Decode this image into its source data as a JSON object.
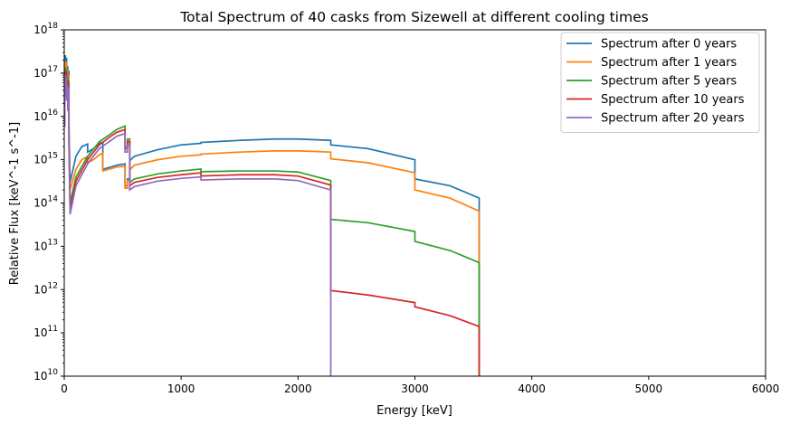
{
  "chart_data": {
    "type": "line",
    "title": "Total Spectrum of 40 casks from Sizewell at different cooling times",
    "xlabel": "Energy [keV]",
    "ylabel": "Relative Flux [keV^-1 s^-1]",
    "xlim": [
      0,
      6000
    ],
    "ylim": [
      10000000000.0,
      1e+18
    ],
    "yscale": "log",
    "grid": false,
    "legend_position": "top-right",
    "x_ticks": [
      0,
      1000,
      2000,
      3000,
      4000,
      5000,
      6000
    ],
    "y_tick_exponents": [
      10,
      11,
      12,
      13,
      14,
      15,
      16,
      17,
      18
    ],
    "series": [
      {
        "name": "Spectrum after 0 years",
        "color": "#1f77b4",
        "x": [
          0,
          5,
          5,
          10,
          10,
          15,
          15,
          20,
          20,
          25,
          25,
          30,
          30,
          35,
          35,
          40,
          40,
          50,
          100,
          150,
          200,
          200,
          250,
          300,
          330,
          330,
          400,
          450,
          520,
          520,
          540,
          540,
          560,
          560,
          600,
          800,
          1000,
          1170,
          1170,
          1500,
          1800,
          2000,
          2280,
          2280,
          2600,
          3000,
          3000,
          3300,
          3550,
          3550
        ],
        "y": [
          2e+16,
          2e+16,
          2.5e+17,
          2.5e+17,
          8e+16,
          8e+16,
          2.2e+17,
          2.2e+17,
          6e+16,
          6e+16,
          1.4e+17,
          1.4e+17,
          4e+16,
          4e+16,
          1.1e+17,
          1.1e+17,
          7000000000000000.0,
          300000000000000.0,
          1200000000000000.0,
          2000000000000000.0,
          2300000000000000.0,
          1500000000000000.0,
          1800000000000000.0,
          2400000000000000.0,
          2500000000000000.0,
          600000000000000.0,
          680000000000000.0,
          750000000000000.0,
          800000000000000.0,
          250000000000000.0,
          250000000000000.0,
          360000000000000.0,
          360000000000000.0,
          950000000000000.0,
          1200000000000000.0,
          1700000000000000.0,
          2200000000000000.0,
          2400000000000000.0,
          2500000000000000.0,
          2800000000000000.0,
          3000000000000000.0,
          3000000000000000.0,
          2800000000000000.0,
          2200000000000000.0,
          1800000000000000.0,
          1000000000000000.0,
          360000000000000.0,
          250000000000000.0,
          130000000000000.0,
          10000000000.0
        ]
      },
      {
        "name": "Spectrum after 1 years",
        "color": "#ff7f0e",
        "x": [
          0,
          5,
          5,
          10,
          10,
          15,
          15,
          20,
          20,
          25,
          25,
          30,
          30,
          35,
          35,
          40,
          40,
          50,
          100,
          150,
          200,
          200,
          250,
          300,
          330,
          330,
          400,
          450,
          520,
          520,
          540,
          540,
          560,
          560,
          600,
          800,
          1000,
          1170,
          1170,
          1500,
          1800,
          2000,
          2280,
          2280,
          2600,
          3000,
          3000,
          3300,
          3550,
          3550
        ],
        "y": [
          1.5e+16,
          1.5e+16,
          1.8e+17,
          1.8e+17,
          6e+16,
          6e+16,
          1.7e+17,
          1.7e+17,
          5e+16,
          5e+16,
          1.1e+17,
          1.1e+17,
          3e+16,
          3e+16,
          8.5e+16,
          8.5e+16,
          5000000000000000.0,
          200000000000000.0,
          600000000000000.0,
          1000000000000000.0,
          1200000000000000.0,
          850000000000000.0,
          1000000000000000.0,
          1300000000000000.0,
          1400000000000000.0,
          550000000000000.0,
          620000000000000.0,
          680000000000000.0,
          700000000000000.0,
          220000000000000.0,
          220000000000000.0,
          330000000000000.0,
          330000000000000.0,
          580000000000000.0,
          750000000000000.0,
          1000000000000000.0,
          1200000000000000.0,
          1300000000000000.0,
          1350000000000000.0,
          1500000000000000.0,
          1600000000000000.0,
          1600000000000000.0,
          1500000000000000.0,
          1050000000000000.0,
          850000000000000.0,
          500000000000000.0,
          200000000000000.0,
          130000000000000.0,
          65000000000000.0,
          10000000000.0
        ]
      },
      {
        "name": "Spectrum after 5 years",
        "color": "#2ca02c",
        "x": [
          0,
          5,
          5,
          10,
          10,
          15,
          15,
          20,
          20,
          25,
          25,
          30,
          30,
          35,
          35,
          40,
          40,
          50,
          100,
          200,
          300,
          400,
          450,
          520,
          520,
          540,
          540,
          560,
          560,
          600,
          800,
          1000,
          1170,
          1170,
          1500,
          1800,
          2000,
          2280,
          2280,
          2600,
          3000,
          3000,
          3300,
          3550,
          3550
        ],
        "y": [
          1e+16,
          1e+16,
          1.3e+17,
          1.3e+17,
          4.5e+16,
          4.5e+16,
          1.2e+17,
          1.2e+17,
          3.5e+16,
          3.5e+16,
          8e+16,
          8e+16,
          2.2e+16,
          2.2e+16,
          6.5e+16,
          6.5e+16,
          3000000000000000.0,
          100000000000000.0,
          400000000000000.0,
          1200000000000000.0,
          2600000000000000.0,
          4000000000000000.0,
          5000000000000000.0,
          6000000000000000.0,
          2000000000000000.0,
          2000000000000000.0,
          3000000000000000.0,
          3000000000000000.0,
          300000000000000.0,
          360000000000000.0,
          470000000000000.0,
          550000000000000.0,
          610000000000000.0,
          530000000000000.0,
          550000000000000.0,
          550000000000000.0,
          520000000000000.0,
          330000000000000.0,
          42000000000000.0,
          35000000000000.0,
          22000000000000.0,
          13000000000000.0,
          8000000000000.0,
          4200000000000.0,
          10000000000.0
        ]
      },
      {
        "name": "Spectrum after 10 years",
        "color": "#d62728",
        "x": [
          0,
          5,
          5,
          10,
          10,
          15,
          15,
          20,
          20,
          25,
          25,
          30,
          30,
          35,
          35,
          40,
          40,
          50,
          100,
          200,
          300,
          400,
          450,
          520,
          520,
          540,
          540,
          560,
          560,
          600,
          800,
          1000,
          1170,
          1170,
          1500,
          1800,
          2000,
          2280,
          2280,
          2600,
          3000,
          3000,
          3300,
          3550,
          3550
        ],
        "y": [
          8000000000000000.0,
          8000000000000000.0,
          1.1e+17,
          1.1e+17,
          3.8e+16,
          3.8e+16,
          1e+17,
          1e+17,
          3e+16,
          3e+16,
          6.5e+16,
          6.5e+16,
          1.8e+16,
          1.8e+16,
          5.5e+16,
          5.5e+16,
          2500000000000000.0,
          70000000000000.0,
          320000000000000.0,
          1000000000000000.0,
          2200000000000000.0,
          3500000000000000.0,
          4300000000000000.0,
          5000000000000000.0,
          1800000000000000.0,
          1800000000000000.0,
          2600000000000000.0,
          2600000000000000.0,
          250000000000000.0,
          300000000000000.0,
          390000000000000.0,
          450000000000000.0,
          500000000000000.0,
          420000000000000.0,
          450000000000000.0,
          450000000000000.0,
          420000000000000.0,
          260000000000000.0,
          950000000000.0,
          750000000000.0,
          500000000000.0,
          400000000000.0,
          250000000000.0,
          140000000000.0,
          10000000000.0
        ]
      },
      {
        "name": "Spectrum after 20 years",
        "color": "#9467bd",
        "x": [
          0,
          5,
          5,
          10,
          10,
          15,
          15,
          20,
          20,
          25,
          25,
          30,
          30,
          35,
          35,
          40,
          40,
          50,
          100,
          200,
          300,
          400,
          450,
          520,
          520,
          540,
          540,
          560,
          560,
          600,
          800,
          1000,
          1170,
          1170,
          1500,
          1800,
          2000,
          2280,
          2280
        ],
        "y": [
          6000000000000000.0,
          6000000000000000.0,
          9e+16,
          9e+16,
          3e+16,
          3e+16,
          8e+16,
          8e+16,
          2.4e+16,
          2.4e+16,
          5e+16,
          5e+16,
          1.4e+16,
          1.4e+16,
          4.5e+16,
          4.5e+16,
          2000000000000000.0,
          55000000000000.0,
          250000000000000.0,
          800000000000000.0,
          1800000000000000.0,
          2800000000000000.0,
          3500000000000000.0,
          4000000000000000.0,
          1500000000000000.0,
          1500000000000000.0,
          2100000000000000.0,
          2100000000000000.0,
          200000000000000.0,
          240000000000000.0,
          320000000000000.0,
          370000000000000.0,
          400000000000000.0,
          340000000000000.0,
          360000000000000.0,
          360000000000000.0,
          330000000000000.0,
          200000000000000.0,
          10000000000.0
        ]
      }
    ]
  }
}
